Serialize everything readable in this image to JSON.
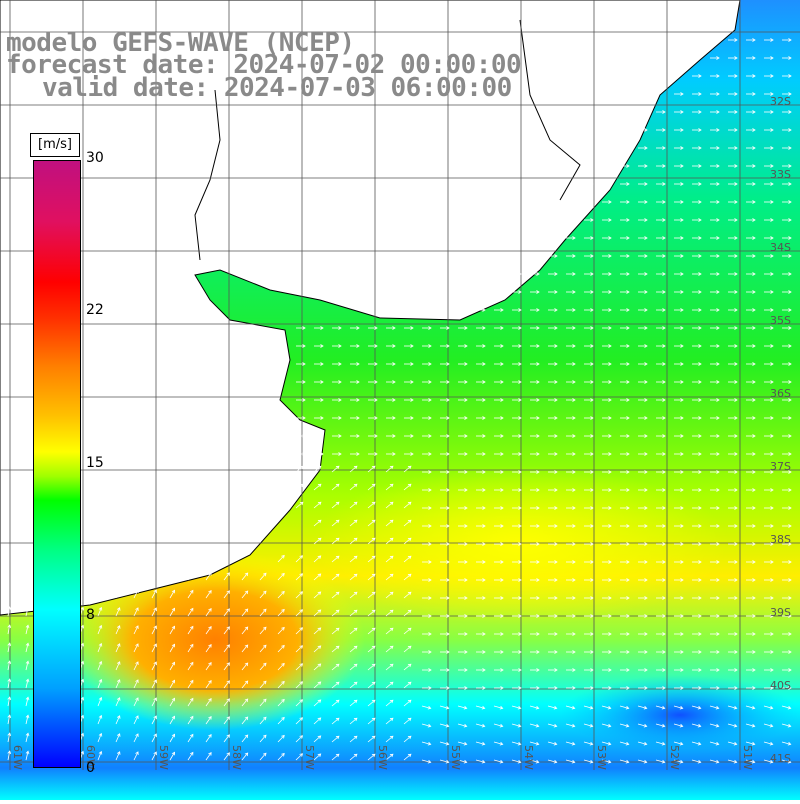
{
  "title": {
    "line1": "modelo GEFS-WAVE (NCEP)",
    "line2": "forecast date: 2024-07-02 00:00:00",
    "line3": "valid date: 2024-07-03 06:00:00"
  },
  "colorbar": {
    "unit": "[m/s]",
    "ticks": [
      "30",
      "22",
      "15",
      "8",
      "0"
    ],
    "colors": [
      "#0000ff",
      "#00a0ff",
      "#00ffff",
      "#00ff80",
      "#00ff00",
      "#a0ff00",
      "#ffff00",
      "#ffc000",
      "#ff8000",
      "#ff3000",
      "#ff0000",
      "#c0107f"
    ]
  },
  "map": {
    "lat_labels": [
      "32S",
      "33S",
      "34S",
      "35S",
      "36S",
      "37S",
      "38S",
      "39S",
      "40S",
      "41S"
    ],
    "lon_labels": [
      "61W",
      "60W",
      "59W",
      "58W",
      "57W",
      "56W",
      "55W",
      "54W",
      "53W",
      "52W",
      "51W",
      "50W"
    ],
    "land_color": "#ffffff",
    "grid_color": "#555555"
  }
}
